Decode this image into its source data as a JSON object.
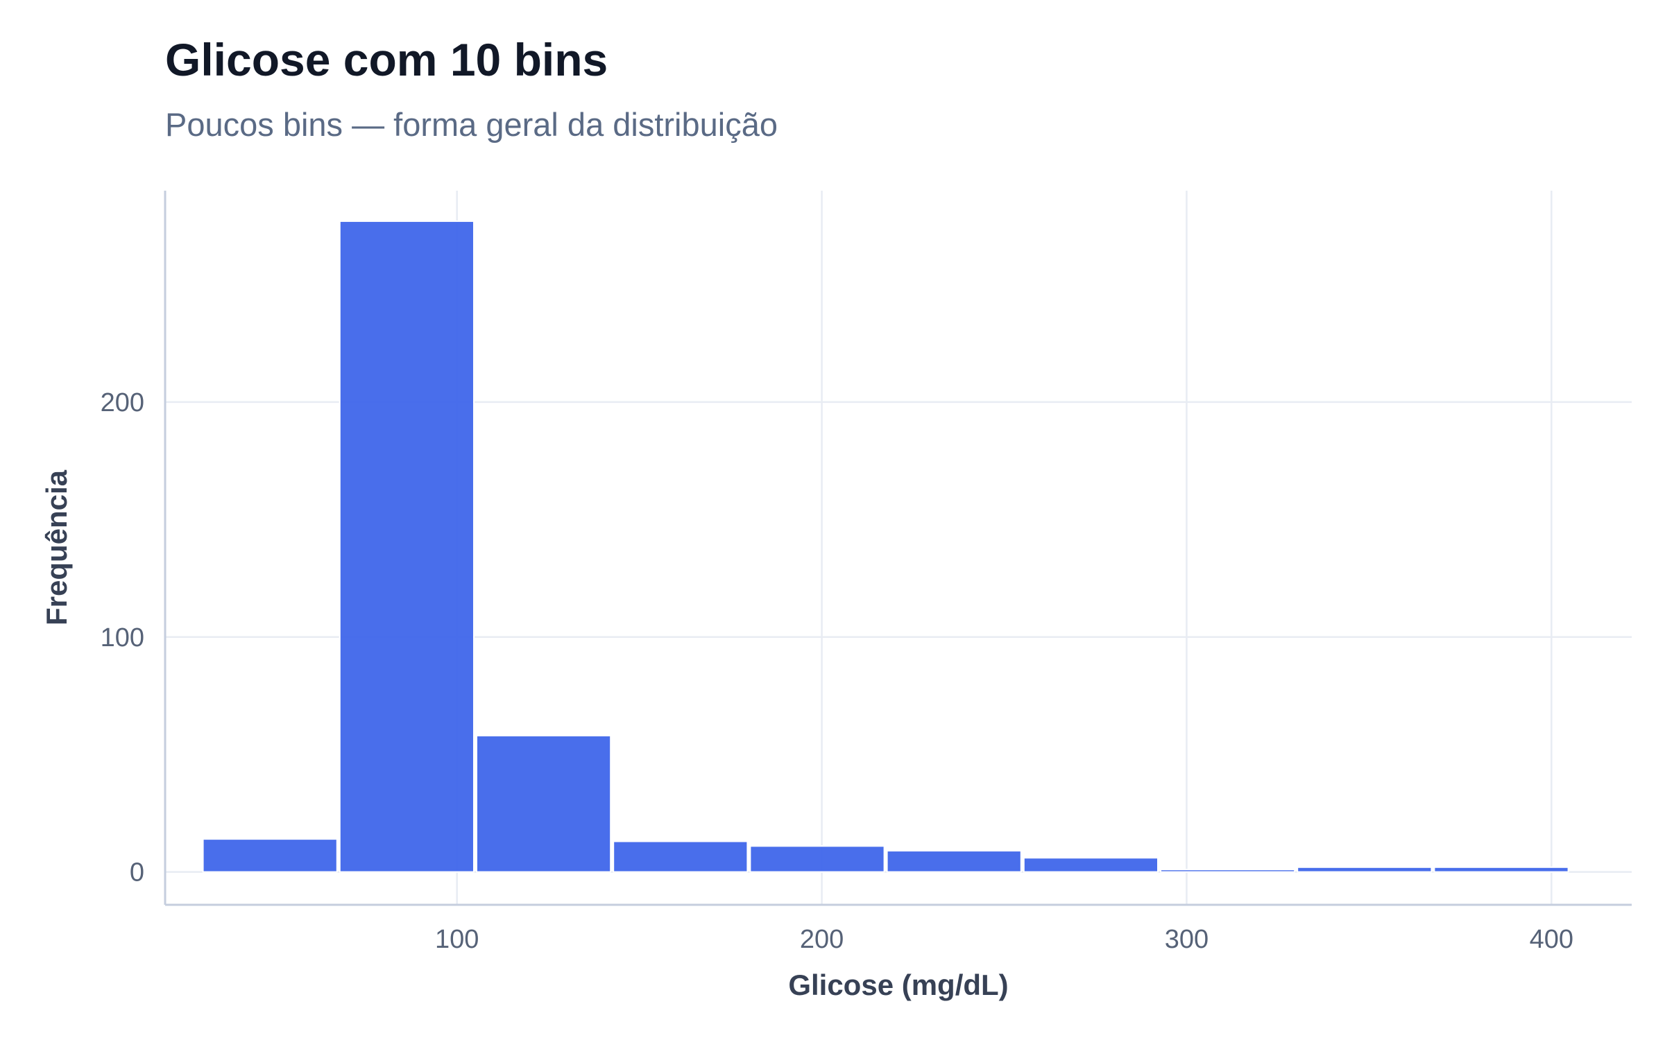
{
  "chart_data": {
    "type": "bar",
    "title": "Glicose com 10 bins",
    "subtitle": "Poucos bins — forma geral da distribuição",
    "xlabel": "Glicose (mg/dL)",
    "ylabel": "Frequência",
    "xlim": [
      20,
      422
    ],
    "ylim": [
      -14,
      290
    ],
    "x_ticks": [
      100,
      200,
      300,
      400
    ],
    "y_ticks": [
      0,
      100,
      200
    ],
    "bins": [
      {
        "x0": 30,
        "x1": 67.5,
        "count": 14
      },
      {
        "x0": 67.5,
        "x1": 105,
        "count": 277
      },
      {
        "x0": 105,
        "x1": 142.5,
        "count": 58
      },
      {
        "x0": 142.5,
        "x1": 180,
        "count": 13
      },
      {
        "x0": 180,
        "x1": 217.5,
        "count": 11
      },
      {
        "x0": 217.5,
        "x1": 255,
        "count": 9
      },
      {
        "x0": 255,
        "x1": 292.5,
        "count": 6
      },
      {
        "x0": 292.5,
        "x1": 330,
        "count": 1
      },
      {
        "x0": 330,
        "x1": 367.5,
        "count": 2
      },
      {
        "x0": 367.5,
        "x1": 405,
        "count": 2
      }
    ],
    "bar_color": "#3b63ea",
    "grid": true,
    "legend": "none"
  }
}
